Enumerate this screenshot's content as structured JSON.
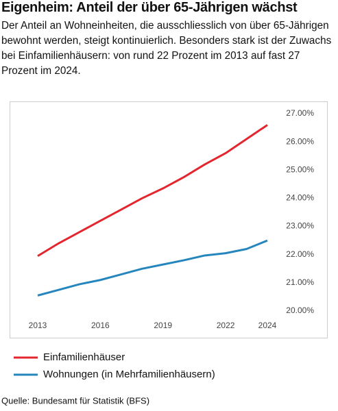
{
  "chart_data": {
    "type": "line",
    "title": "Eigenheim: Anteil der über 65-Jährigen wächst",
    "subtitle": "Der Anteil an Wohneinheiten, die ausschliesslich von über 65-Jährigen bewohnt werden, steigt kontinuierlich. Besonders stark ist der Zuwachs bei Einfamilienhäusern: von rund 22 Prozent im 2013 auf fast 27 Prozent im 2024.",
    "source": "Quelle: Bundesamt für Statistik (BFS)",
    "x": [
      2013,
      2014,
      2015,
      2016,
      2017,
      2018,
      2019,
      2020,
      2021,
      2022,
      2023,
      2024
    ],
    "xlim": [
      2013,
      2024
    ],
    "xticks": [
      2013,
      2016,
      2019,
      2022,
      2024
    ],
    "ylim": [
      20,
      27
    ],
    "yticks": [
      {
        "value": 20,
        "label": "20.00%"
      },
      {
        "value": 21,
        "label": "21.00%"
      },
      {
        "value": 22,
        "label": "22.00%"
      },
      {
        "value": 23,
        "label": "23.00%"
      },
      {
        "value": 24,
        "label": "24.00%"
      },
      {
        "value": 25,
        "label": "25.00%"
      },
      {
        "value": 26,
        "label": "26.00%"
      },
      {
        "value": 27,
        "label": "27.00%"
      }
    ],
    "series": [
      {
        "name": "Einfamilienhäuser",
        "color": "#e3262d",
        "values": [
          21.95,
          22.4,
          22.8,
          23.2,
          23.6,
          24.0,
          24.35,
          24.75,
          25.2,
          25.6,
          26.1,
          26.6
        ]
      },
      {
        "name": "Wohnungen (in Mehrfamilienhäusern)",
        "color": "#2585bd",
        "values": [
          20.55,
          20.75,
          20.95,
          21.1,
          21.3,
          21.5,
          21.65,
          21.8,
          21.97,
          22.05,
          22.2,
          22.5
        ]
      }
    ]
  }
}
